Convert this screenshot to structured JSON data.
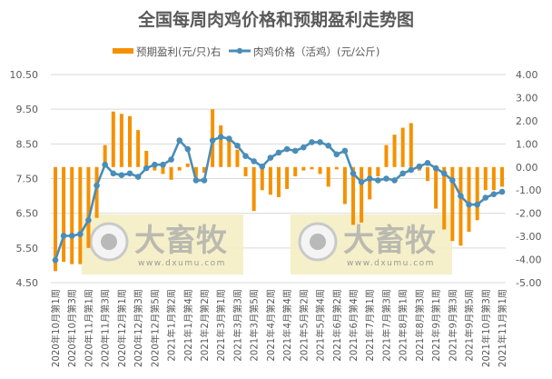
{
  "chart_data": {
    "type": "bar+line",
    "title": "全国每周肉鸡价格和预期盈利走势图",
    "legend": [
      {
        "name": "预期盈利(元/只)右",
        "type": "bar",
        "color": "#F59100",
        "axis": "right"
      },
      {
        "name": "肉鸡价格（活鸡）(元/公斤)",
        "type": "line",
        "color": "#4A8DB7",
        "axis": "left"
      }
    ],
    "legend_position": "top",
    "grid": true,
    "left_axis": {
      "min": 4.5,
      "max": 10.5,
      "ticks": [
        "10.50",
        "9.50",
        "8.50",
        "7.50",
        "6.50",
        "5.50",
        "4.50"
      ]
    },
    "right_axis": {
      "min": -5,
      "max": 4,
      "ticks": [
        "4.00",
        "3.00",
        "2.00",
        "1.00",
        "0.00",
        "-1.00",
        "-2.00",
        "-3.00",
        "-4.00",
        "-5.00"
      ]
    },
    "x_labels_shown": [
      "2020年10月第1周",
      "2020年10月第3周",
      "2020年11月第1周",
      "2020年11月第3周",
      "2020年12月第1周",
      "2020年12月第3周",
      "2020年12月第5周",
      "2021年1月第2周",
      "2021年1月第4周",
      "2021年2月第2周",
      "2021年3月第1周",
      "2021年3月第3周",
      "2021年3月第5周",
      "2021年4月第2周",
      "2021年4月第4周",
      "2021年5月第2周",
      "2021年5月第4周",
      "2021年6月第2周",
      "2021年6月第4周",
      "2021年7月第1周",
      "2021年7月第3周",
      "2021年8月第1周",
      "2021年8月第3周",
      "2021年9月第1周",
      "2021年9月第3周",
      "2021年9月第5周",
      "2021年10月第3周",
      "2021年11月第1周"
    ],
    "categories": [
      "2020年10月第1周",
      "2020年10月第2周",
      "2020年10月第3周",
      "2020年10月第4周",
      "2020年11月第1周",
      "2020年11月第2周",
      "2020年11月第3周",
      "2020年11月第4周",
      "2020年12月第1周",
      "2020年12月第2周",
      "2020年12月第3周",
      "2020年12月第4周",
      "2020年12月第5周",
      "2021年1月第1周",
      "2021年1月第2周",
      "2021年1月第3周",
      "2021年1月第4周",
      "2021年2月第1周",
      "2021年2月第2周",
      "2021年2月第3周",
      "2021年3月第1周",
      "2021年3月第2周",
      "2021年3月第3周",
      "2021年3月第4周",
      "2021年3月第5周",
      "2021年4月第1周",
      "2021年4月第2周",
      "2021年4月第3周",
      "2021年4月第4周",
      "2021年5月第1周",
      "2021年5月第2周",
      "2021年5月第3周",
      "2021年5月第4周",
      "2021年6月第1周",
      "2021年6月第2周",
      "2021年6月第3周",
      "2021年6月第4周",
      "2021年6月第5周",
      "2021年7月第1周",
      "2021年7月第2周",
      "2021年7月第3周",
      "2021年7月第4周",
      "2021年8月第1周",
      "2021年8月第2周",
      "2021年8月第3周",
      "2021年8月第4周",
      "2021年9月第1周",
      "2021年9月第2周",
      "2021年9月第3周",
      "2021年9月第4周",
      "2021年9月第5周",
      "2021年10月第2周",
      "2021年10月第3周",
      "2021年10月第4周",
      "2021年11月第1周"
    ],
    "series": [
      {
        "name": "肉鸡价格（活鸡）(元/公斤)",
        "axis": "left",
        "values": [
          5.15,
          5.85,
          5.85,
          5.9,
          6.3,
          7.3,
          7.9,
          7.65,
          7.6,
          7.65,
          7.55,
          7.8,
          7.9,
          7.9,
          8.05,
          8.6,
          8.35,
          7.45,
          7.45,
          8.6,
          8.7,
          8.65,
          8.45,
          8.15,
          8.0,
          7.85,
          8.1,
          8.25,
          8.35,
          8.3,
          8.4,
          8.55,
          8.55,
          8.45,
          8.2,
          8.3,
          7.65,
          7.4,
          7.5,
          7.45,
          7.5,
          7.45,
          7.65,
          7.75,
          7.85,
          7.95,
          7.8,
          7.65,
          7.45,
          7.0,
          6.75,
          6.75,
          6.95,
          7.05,
          7.12
        ]
      },
      {
        "name": "预期盈利(元/只)右",
        "axis": "right",
        "values": [
          -4.5,
          -4.1,
          -4.2,
          -4.2,
          -3.5,
          -2.2,
          0.95,
          2.4,
          2.3,
          2.2,
          1.6,
          0.7,
          -0.15,
          -0.3,
          -0.55,
          -0.15,
          0.15,
          -0.5,
          -0.25,
          2.5,
          1.8,
          1.2,
          0.75,
          -0.4,
          -1.9,
          -1.0,
          -1.2,
          -1.3,
          -0.95,
          -0.4,
          -0.15,
          -0.1,
          -0.3,
          -0.85,
          -0.1,
          -1.6,
          -2.5,
          -2.4,
          -1.4,
          -0.4,
          0.95,
          1.4,
          1.7,
          1.9,
          -0.15,
          -0.6,
          -1.8,
          -2.7,
          -3.2,
          -3.4,
          -2.8,
          -2.3,
          -1.0,
          -1.0,
          -0.85
        ]
      }
    ]
  },
  "watermarks": [
    {
      "brand": "大畜牧",
      "url": "www.dxumu.com"
    },
    {
      "brand": "大畜牧",
      "url": "www.dxumu.com"
    }
  ]
}
